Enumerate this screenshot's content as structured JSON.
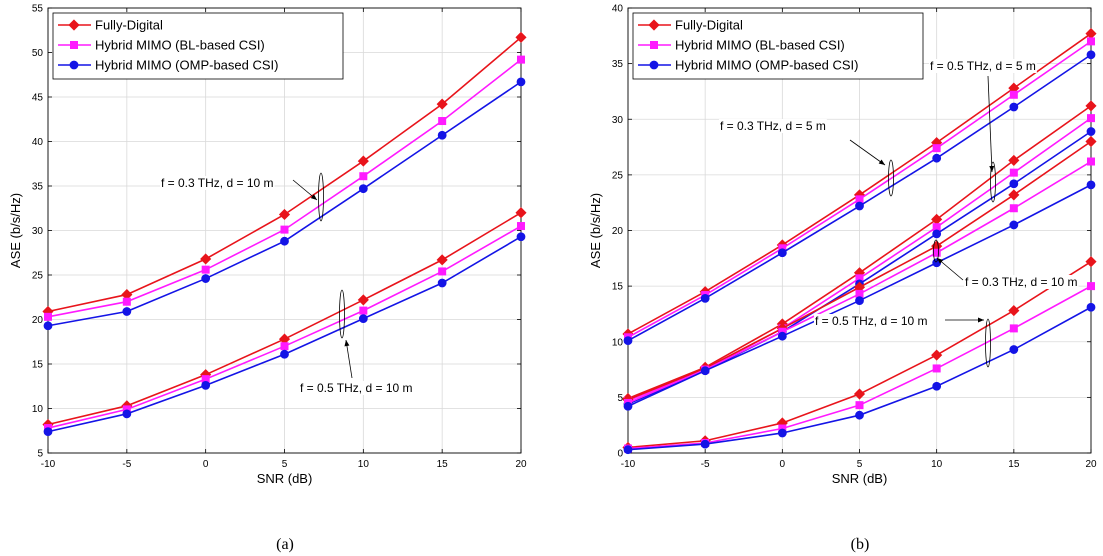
{
  "chart_data": [
    {
      "type": "line",
      "caption": "(a)",
      "xlabel": "SNR (dB)",
      "ylabel": "ASE (b/s/Hz)",
      "xlim": [
        -10,
        20
      ],
      "ylim": [
        5,
        55
      ],
      "xticks": [
        -10,
        -5,
        0,
        5,
        10,
        15,
        20
      ],
      "yticks": [
        5,
        10,
        15,
        20,
        25,
        30,
        35,
        40,
        45,
        50,
        55
      ],
      "grid": true,
      "legend_position": "top-left",
      "legend": [
        {
          "name": "Fully-Digital",
          "color": "#e8141b",
          "marker": "diamond"
        },
        {
          "name": "Hybrid MIMO (BL-based CSI)",
          "color": "#ff1aff",
          "marker": "square"
        },
        {
          "name": "Hybrid MIMO (OMP-based CSI)",
          "color": "#1414e6",
          "marker": "circle"
        }
      ],
      "x": [
        -10,
        -5,
        0,
        5,
        10,
        15,
        20
      ],
      "series": [
        {
          "group": "f = 0.3 THz, d = 10 m",
          "legend_index": 0,
          "values": [
            20.9,
            22.8,
            26.8,
            31.8,
            37.8,
            44.2,
            51.7
          ]
        },
        {
          "group": "f = 0.3 THz, d = 10 m",
          "legend_index": 1,
          "values": [
            20.3,
            22.0,
            25.6,
            30.1,
            36.1,
            42.3,
            49.2
          ]
        },
        {
          "group": "f = 0.3 THz, d = 10 m",
          "legend_index": 2,
          "values": [
            19.3,
            20.9,
            24.6,
            28.8,
            34.7,
            40.7,
            46.7
          ]
        },
        {
          "group": "f = 0.5 THz, d = 10 m",
          "legend_index": 0,
          "values": [
            8.2,
            10.3,
            13.8,
            17.8,
            22.2,
            26.7,
            32.0
          ]
        },
        {
          "group": "f = 0.5 THz, d = 10 m",
          "legend_index": 1,
          "values": [
            7.8,
            9.9,
            13.3,
            17.0,
            21.0,
            25.4,
            30.5
          ]
        },
        {
          "group": "f = 0.5 THz, d = 10 m",
          "legend_index": 2,
          "values": [
            7.4,
            9.4,
            12.6,
            16.1,
            20.1,
            24.1,
            29.3
          ]
        }
      ],
      "annotations": [
        {
          "text": "f = 0.3 THz, d = 10 m"
        },
        {
          "text": "f = 0.5 THz, d = 10 m"
        }
      ]
    },
    {
      "type": "line",
      "caption": "(b)",
      "xlabel": "SNR (dB)",
      "ylabel": "ASE (b/s/Hz)",
      "xlim": [
        -10,
        20
      ],
      "ylim": [
        0,
        40
      ],
      "xticks": [
        -10,
        -5,
        0,
        5,
        10,
        15,
        20
      ],
      "yticks": [
        0,
        5,
        10,
        15,
        20,
        25,
        30,
        35,
        40
      ],
      "grid": true,
      "legend_position": "top-left",
      "legend": [
        {
          "name": "Fully-Digital",
          "color": "#e8141b",
          "marker": "diamond"
        },
        {
          "name": "Hybrid MIMO (BL-based CSI)",
          "color": "#ff1aff",
          "marker": "square"
        },
        {
          "name": "Hybrid MIMO (OMP-based CSI)",
          "color": "#1414e6",
          "marker": "circle"
        }
      ],
      "x": [
        -10,
        -5,
        0,
        5,
        10,
        15,
        20
      ],
      "series": [
        {
          "group": "f = 0.3 THz, d = 5 m",
          "legend_index": 0,
          "values": [
            10.7,
            14.5,
            18.7,
            23.2,
            27.9,
            32.8,
            37.7
          ]
        },
        {
          "group": "f = 0.3 THz, d = 5 m",
          "legend_index": 1,
          "values": [
            10.4,
            14.2,
            18.4,
            22.8,
            27.4,
            32.2,
            37.0
          ]
        },
        {
          "group": "f = 0.3 THz, d = 5 m",
          "legend_index": 2,
          "values": [
            10.1,
            13.9,
            18.0,
            22.2,
            26.5,
            31.1,
            35.8
          ]
        },
        {
          "group": "f = 0.5 THz, d = 5 m",
          "legend_index": 0,
          "values": [
            4.9,
            7.7,
            11.6,
            16.2,
            21.0,
            26.3,
            31.2
          ]
        },
        {
          "group": "f = 0.5 THz, d = 5 m",
          "legend_index": 1,
          "values": [
            4.7,
            7.5,
            11.2,
            15.7,
            20.3,
            25.2,
            30.1
          ]
        },
        {
          "group": "f = 0.5 THz, d = 5 m",
          "legend_index": 2,
          "values": [
            4.4,
            7.4,
            10.9,
            15.2,
            19.7,
            24.2,
            28.9
          ]
        },
        {
          "group": "f = 0.3 THz, d = 10 m",
          "legend_index": 0,
          "values": [
            4.8,
            7.6,
            11.2,
            14.9,
            18.6,
            23.2,
            28.0
          ]
        },
        {
          "group": "f = 0.3 THz, d = 10 m",
          "legend_index": 1,
          "values": [
            4.5,
            7.5,
            10.9,
            14.3,
            18.0,
            22.0,
            26.2
          ]
        },
        {
          "group": "f = 0.3 THz, d = 10 m",
          "legend_index": 2,
          "values": [
            4.2,
            7.4,
            10.5,
            13.7,
            17.1,
            20.5,
            24.1
          ]
        },
        {
          "group": "f = 0.5 THz, d = 10 m",
          "legend_index": 0,
          "values": [
            0.5,
            1.1,
            2.7,
            5.3,
            8.8,
            12.8,
            17.2
          ]
        },
        {
          "group": "f = 0.5 THz, d = 10 m",
          "legend_index": 1,
          "values": [
            0.4,
            0.9,
            2.2,
            4.3,
            7.6,
            11.2,
            15.0
          ]
        },
        {
          "group": "f = 0.5 THz, d = 10 m",
          "legend_index": 2,
          "values": [
            0.3,
            0.8,
            1.8,
            3.4,
            6.0,
            9.3,
            13.1
          ]
        }
      ],
      "annotations": [
        {
          "text": "f = 0.5 THz, d = 5 m"
        },
        {
          "text": "f = 0.3 THz, d = 5 m"
        },
        {
          "text": "f = 0.3 THz, d = 10 m"
        },
        {
          "text": "f = 0.5 THz, d = 10 m"
        }
      ]
    }
  ]
}
